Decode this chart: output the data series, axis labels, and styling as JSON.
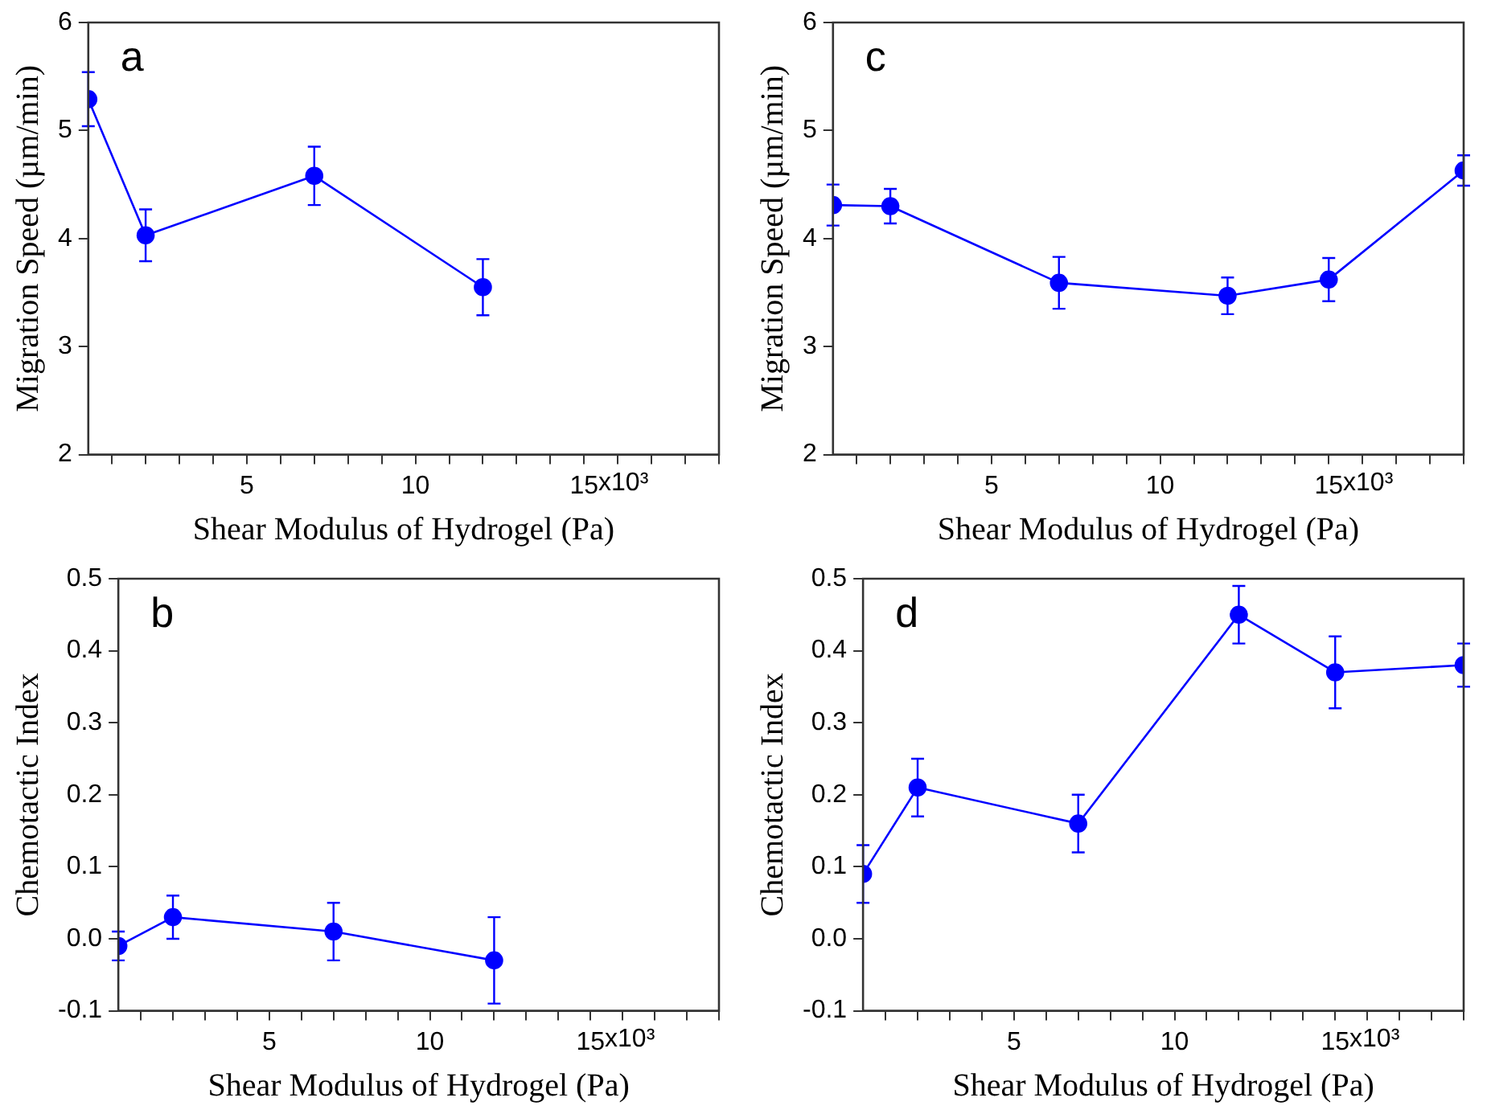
{
  "chart_data": [
    {
      "type": "line",
      "annotations": [
        "a",
        "x10³"
      ],
      "xlabel": "Shear Modulus of Hydrogel (Pa)",
      "ylabel": "Migration Speed (µm/min)",
      "x": [
        0.3,
        2,
        7,
        12
      ],
      "series": [
        {
          "color": "#0000ff",
          "values": [
            5.29,
            4.03,
            4.58,
            3.55
          ],
          "errors": [
            0.25,
            0.24,
            0.27,
            0.26
          ]
        }
      ],
      "xlim": [
        0.3,
        19
      ],
      "xticks": [
        {
          "value": 1,
          "label": null
        },
        {
          "value": 2,
          "label": null
        },
        {
          "value": 3,
          "label": null
        },
        {
          "value": 4,
          "label": null
        },
        {
          "value": 5,
          "label": "5"
        },
        {
          "value": 6,
          "label": null
        },
        {
          "value": 7,
          "label": null
        },
        {
          "value": 8,
          "label": null
        },
        {
          "value": 9,
          "label": null
        },
        {
          "value": 10,
          "label": "10"
        },
        {
          "value": 11,
          "label": null
        },
        {
          "value": 12,
          "label": null
        },
        {
          "value": 13,
          "label": null
        },
        {
          "value": 14,
          "label": null
        },
        {
          "value": 15,
          "label": "15"
        },
        {
          "value": 16,
          "label": null
        },
        {
          "value": 17,
          "label": null
        },
        {
          "value": 18,
          "label": null
        },
        {
          "value": 19,
          "label": null
        }
      ],
      "ylim": [
        2,
        6
      ],
      "yticks": [
        2,
        3,
        4,
        5,
        6
      ],
      "grid": false,
      "legend": false,
      "marker": "circle",
      "line_style": "solid"
    },
    {
      "type": "line",
      "annotations": [
        "c",
        "x10³"
      ],
      "xlabel": "Shear Modulus of Hydrogel (Pa)",
      "ylabel": "Migration Speed (µm/min)",
      "x": [
        0.3,
        2,
        7,
        12,
        15,
        19
      ],
      "series": [
        {
          "color": "#0000ff",
          "values": [
            4.31,
            4.3,
            3.59,
            3.47,
            3.62,
            4.63
          ],
          "errors": [
            0.19,
            0.16,
            0.24,
            0.17,
            0.2,
            0.14
          ]
        }
      ],
      "xlim": [
        0.3,
        19
      ],
      "xticks": [
        {
          "value": 1,
          "label": null
        },
        {
          "value": 2,
          "label": null
        },
        {
          "value": 3,
          "label": null
        },
        {
          "value": 4,
          "label": null
        },
        {
          "value": 5,
          "label": "5"
        },
        {
          "value": 6,
          "label": null
        },
        {
          "value": 7,
          "label": null
        },
        {
          "value": 8,
          "label": null
        },
        {
          "value": 9,
          "label": null
        },
        {
          "value": 10,
          "label": "10"
        },
        {
          "value": 11,
          "label": null
        },
        {
          "value": 12,
          "label": null
        },
        {
          "value": 13,
          "label": null
        },
        {
          "value": 14,
          "label": null
        },
        {
          "value": 15,
          "label": "15"
        },
        {
          "value": 16,
          "label": null
        },
        {
          "value": 17,
          "label": null
        },
        {
          "value": 18,
          "label": null
        },
        {
          "value": 19,
          "label": null
        }
      ],
      "ylim": [
        2,
        6
      ],
      "yticks": [
        2,
        3,
        4,
        5,
        6
      ],
      "grid": false,
      "legend": false,
      "marker": "circle",
      "line_style": "solid"
    },
    {
      "type": "line",
      "annotations": [
        "b",
        "x10³"
      ],
      "xlabel": "Shear Modulus of Hydrogel (Pa)",
      "ylabel": "Chemotactic Index",
      "x": [
        0.3,
        2,
        7,
        12
      ],
      "series": [
        {
          "color": "#0000ff",
          "values": [
            -0.01,
            0.03,
            0.01,
            -0.03
          ],
          "errors": [
            0.02,
            0.03,
            0.04,
            0.06
          ]
        }
      ],
      "xlim": [
        0.3,
        19
      ],
      "xticks": [
        {
          "value": 1,
          "label": null
        },
        {
          "value": 2,
          "label": null
        },
        {
          "value": 3,
          "label": null
        },
        {
          "value": 4,
          "label": null
        },
        {
          "value": 5,
          "label": "5"
        },
        {
          "value": 6,
          "label": null
        },
        {
          "value": 7,
          "label": null
        },
        {
          "value": 8,
          "label": null
        },
        {
          "value": 9,
          "label": null
        },
        {
          "value": 10,
          "label": "10"
        },
        {
          "value": 11,
          "label": null
        },
        {
          "value": 12,
          "label": null
        },
        {
          "value": 13,
          "label": null
        },
        {
          "value": 14,
          "label": null
        },
        {
          "value": 15,
          "label": "15"
        },
        {
          "value": 16,
          "label": null
        },
        {
          "value": 17,
          "label": null
        },
        {
          "value": 18,
          "label": null
        },
        {
          "value": 19,
          "label": null
        }
      ],
      "ylim": [
        -0.1,
        0.5
      ],
      "yticks": [
        -0.1,
        {
          "value": 0,
          "label": "0.0"
        },
        0.1,
        0.2,
        0.3,
        0.4,
        0.5
      ],
      "grid": false,
      "legend": false,
      "marker": "circle",
      "line_style": "solid"
    },
    {
      "type": "line",
      "annotations": [
        "d",
        "x10³"
      ],
      "xlabel": "Shear Modulus of Hydrogel (Pa)",
      "ylabel": "Chemotactic Index",
      "x": [
        0.3,
        2,
        7,
        12,
        15,
        19
      ],
      "series": [
        {
          "color": "#0000ff",
          "values": [
            0.09,
            0.21,
            0.16,
            0.45,
            0.37,
            0.38
          ],
          "errors": [
            0.04,
            0.04,
            0.04,
            0.04,
            0.05,
            0.03
          ]
        }
      ],
      "xlim": [
        0.3,
        19
      ],
      "xticks": [
        {
          "value": 1,
          "label": null
        },
        {
          "value": 2,
          "label": null
        },
        {
          "value": 3,
          "label": null
        },
        {
          "value": 4,
          "label": null
        },
        {
          "value": 5,
          "label": "5"
        },
        {
          "value": 6,
          "label": null
        },
        {
          "value": 7,
          "label": null
        },
        {
          "value": 8,
          "label": null
        },
        {
          "value": 9,
          "label": null
        },
        {
          "value": 10,
          "label": "10"
        },
        {
          "value": 11,
          "label": null
        },
        {
          "value": 12,
          "label": null
        },
        {
          "value": 13,
          "label": null
        },
        {
          "value": 14,
          "label": null
        },
        {
          "value": 15,
          "label": "15"
        },
        {
          "value": 16,
          "label": null
        },
        {
          "value": 17,
          "label": null
        },
        {
          "value": 18,
          "label": null
        },
        {
          "value": 19,
          "label": null
        }
      ],
      "ylim": [
        -0.1,
        0.5
      ],
      "yticks": [
        -0.1,
        {
          "value": 0,
          "label": "0.0"
        },
        0.1,
        0.2,
        0.3,
        0.4,
        0.5
      ],
      "grid": false,
      "legend": false,
      "marker": "circle",
      "line_style": "solid"
    }
  ]
}
